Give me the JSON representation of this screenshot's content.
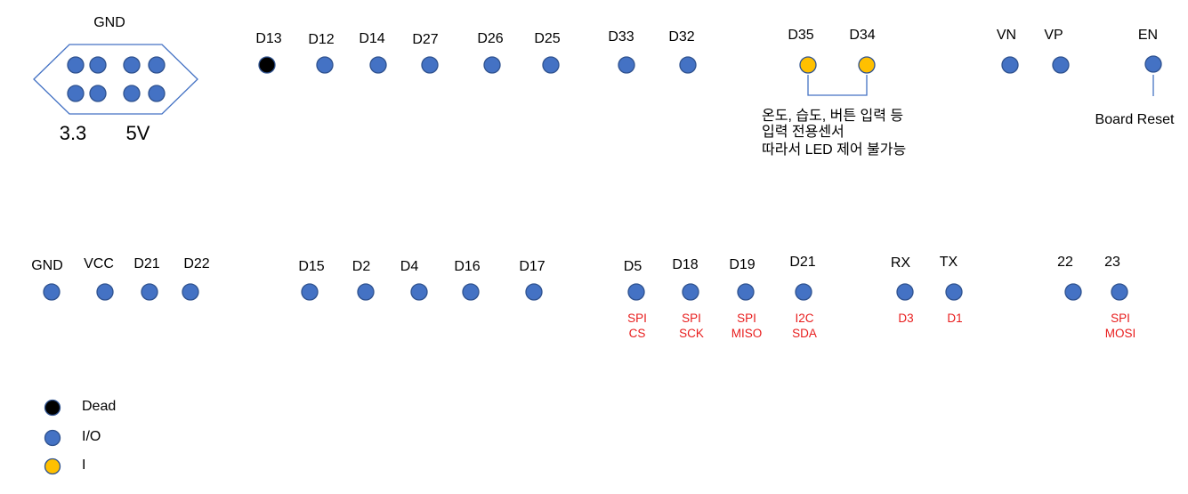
{
  "colors": {
    "dead": "#000000",
    "io": "#4472c4",
    "input": "#ffc000",
    "outline": "#2f528f",
    "function_label": "#e81c1c"
  },
  "power_header": {
    "top_label": "GND",
    "left_label": "3.3",
    "right_label": "5V"
  },
  "top_row": [
    {
      "label": "D13",
      "kind": "dead"
    },
    {
      "label": "D12",
      "kind": "io"
    },
    {
      "label": "D14",
      "kind": "io"
    },
    {
      "label": "D27",
      "kind": "io"
    },
    {
      "label": "D26",
      "kind": "io"
    },
    {
      "label": "D25",
      "kind": "io"
    },
    {
      "label": "D33",
      "kind": "io"
    },
    {
      "label": "D32",
      "kind": "io"
    },
    {
      "label": "D35",
      "kind": "input"
    },
    {
      "label": "D34",
      "kind": "input"
    },
    {
      "label": "VN",
      "kind": "io"
    },
    {
      "label": "VP",
      "kind": "io"
    },
    {
      "label": "EN",
      "kind": "io"
    }
  ],
  "input_note": [
    "온도, 습도, 버튼 입력 등",
    "입력 전용센서",
    "따라서 LED 제어 불가능"
  ],
  "en_note": "Board Reset",
  "bottom_row": [
    {
      "label": "GND",
      "kind": "io",
      "function": []
    },
    {
      "label": "VCC",
      "kind": "io",
      "function": []
    },
    {
      "label": "D21",
      "kind": "io",
      "function": []
    },
    {
      "label": "D22",
      "kind": "io",
      "function": []
    },
    {
      "label": "D15",
      "kind": "io",
      "function": []
    },
    {
      "label": "D2",
      "kind": "io",
      "function": []
    },
    {
      "label": "D4",
      "kind": "io",
      "function": []
    },
    {
      "label": "D16",
      "kind": "io",
      "function": []
    },
    {
      "label": "D17",
      "kind": "io",
      "function": []
    },
    {
      "label": "D5",
      "kind": "io",
      "function": [
        "SPI",
        "CS"
      ]
    },
    {
      "label": "D18",
      "kind": "io",
      "function": [
        "SPI",
        "SCK"
      ]
    },
    {
      "label": "D19",
      "kind": "io",
      "function": [
        "SPI",
        "MISO"
      ]
    },
    {
      "label": "D21",
      "kind": "io",
      "function": [
        "I2C",
        "SDA"
      ]
    },
    {
      "label": "RX",
      "kind": "io",
      "function": [
        "D3"
      ]
    },
    {
      "label": "TX",
      "kind": "io",
      "function": [
        "D1"
      ]
    },
    {
      "label": "22",
      "kind": "io",
      "function": []
    },
    {
      "label": "23",
      "kind": "io",
      "function": [
        "SPI",
        "MOSI"
      ]
    }
  ],
  "legend": [
    {
      "label": "Dead",
      "kind": "dead"
    },
    {
      "label": "I/O",
      "kind": "io"
    },
    {
      "label": "I",
      "kind": "input"
    }
  ]
}
